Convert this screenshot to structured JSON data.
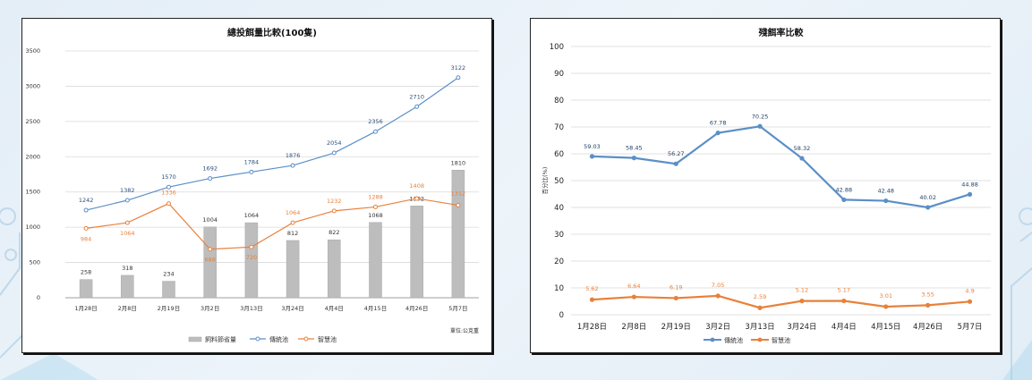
{
  "colors": {
    "blue": "#5b8fc7",
    "orange": "#e8813a",
    "bar": "#bdbdbd"
  },
  "chart_data": [
    {
      "type": "bar+line",
      "title": "總投餌量比較(100隻)",
      "unit_note": "單位:公克重",
      "categories": [
        "1月28日",
        "2月8日",
        "2月19日",
        "3月2日",
        "3月13日",
        "3月24日",
        "4月4日",
        "4月15日",
        "4月26日",
        "5月7日"
      ],
      "ylim": [
        0,
        3500
      ],
      "yticks": [
        0,
        500,
        1000,
        1500,
        2000,
        2500,
        3000,
        3500
      ],
      "grid": true,
      "legend_position": "bottom",
      "series": [
        {
          "name": "飼料節省量",
          "kind": "bar",
          "color": "#bdbdbd",
          "values": [
            258,
            318,
            234,
            1004,
            1064,
            812,
            822,
            1068,
            1302,
            1810
          ]
        },
        {
          "name": "傳統池",
          "kind": "line",
          "color": "#5b8fc7",
          "values": [
            1242,
            1382,
            1570,
            1692,
            1784,
            1876,
            2054,
            2356,
            2710,
            3122
          ]
        },
        {
          "name": "智慧池",
          "kind": "line",
          "color": "#e8813a",
          "values": [
            984,
            1064,
            1336,
            688,
            720,
            1064,
            1232,
            1288,
            1408,
            1312
          ]
        }
      ]
    },
    {
      "type": "line",
      "title": "殘餌率比較",
      "ylabel": "百分比(%)",
      "categories": [
        "1月28日",
        "2月8日",
        "2月19日",
        "3月2日",
        "3月13日",
        "3月24日",
        "4月4日",
        "4月15日",
        "4月26日",
        "5月7日"
      ],
      "ylim": [
        0,
        100
      ],
      "yticks": [
        0,
        10,
        20,
        30,
        40,
        50,
        60,
        70,
        80,
        90,
        100
      ],
      "grid": true,
      "legend_position": "bottom",
      "series": [
        {
          "name": "傳統池",
          "color": "#5b8fc7",
          "values": [
            59.03,
            58.45,
            56.27,
            67.78,
            70.25,
            58.32,
            42.88,
            42.48,
            40.02,
            44.88
          ]
        },
        {
          "name": "智慧池",
          "color": "#e8813a",
          "values": [
            5.62,
            6.64,
            6.19,
            7.05,
            2.59,
            5.12,
            5.17,
            3.01,
            3.55,
            4.9
          ]
        }
      ]
    }
  ]
}
